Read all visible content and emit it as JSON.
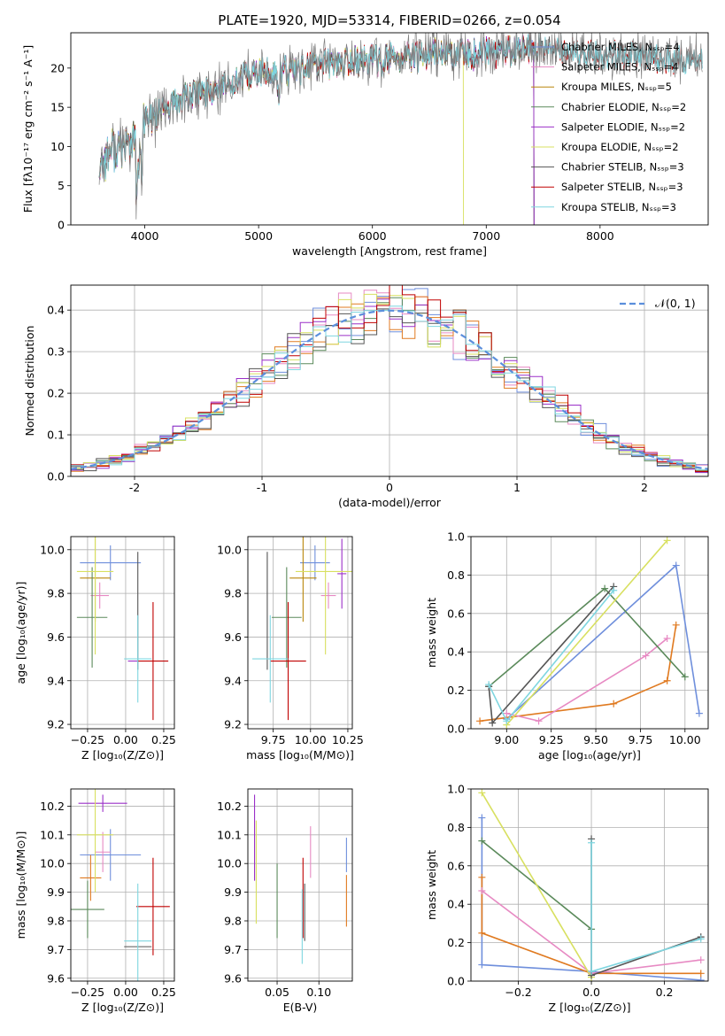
{
  "palette": {
    "chabrier_miles": "#6f8fdc",
    "salpeter_miles": "#e78ac3",
    "kroupa_miles": "#b8860b",
    "chabrier_elodie": "#5b8a5b",
    "salpeter_elodie": "#9b30c8",
    "kroupa_elodie": "#d8e060",
    "chabrier_stelib": "#555555",
    "salpeter_stelib": "#c00000",
    "kroupa_stelib": "#7fd6e0",
    "gauss": "#5b8fdc",
    "orange": "#e07a20",
    "grid": "#b0b0b0"
  },
  "chart_data": [
    {
      "id": "spectrum",
      "type": "line",
      "title": "PLATE=1920, MJD=53314, FIBERID=0266, z=0.054",
      "xlabel": "wavelength [Angstrom, rest frame]",
      "ylabel": "Flux [fλ10⁻¹⁷ erg cm⁻² s⁻¹ A⁻¹]",
      "xlim": [
        3350,
        8950
      ],
      "ylim": [
        0,
        24.5
      ],
      "xticks": [
        4000,
        5000,
        6000,
        7000,
        8000
      ],
      "yticks": [
        0,
        5,
        10,
        15,
        20
      ],
      "grid": false,
      "legend_position": "upper-right",
      "legend": [
        "Chabrier MILES, Nₛₛₚ=4",
        "Salpeter MILES, Nₛₛₚ=4",
        "Kroupa MILES, Nₛₛₚ=5",
        "Chabrier ELODIE, Nₛₛₚ=2",
        "Salpeter ELODIE, Nₛₛₚ=2",
        "Kroupa ELODIE, Nₛₛₚ=2",
        "Chabrier STELIB, Nₛₛₚ=3",
        "Salpeter STELIB, Nₛₛₚ=3",
        "Kroupa STELIB, Nₛₛₚ=3"
      ],
      "continuum": {
        "x": [
          3600,
          3700,
          3900,
          4000,
          4200,
          4400,
          4600,
          4800,
          5000,
          5200,
          5400,
          5600,
          5800,
          6000,
          6200,
          6400,
          6600,
          6800,
          7000,
          7200,
          7400,
          7600,
          7800,
          8000,
          8200,
          8400,
          8600,
          8800
        ],
        "y": [
          7.5,
          9.5,
          10.5,
          13.0,
          15.0,
          16.5,
          17.2,
          18.3,
          19.4,
          19.5,
          20.0,
          20.5,
          20.8,
          21.0,
          21.2,
          21.5,
          21.8,
          21.6,
          21.9,
          22.2,
          22.4,
          22.3,
          22.1,
          21.8,
          21.5,
          21.3,
          21.0,
          21.0
        ]
      },
      "data_range": [
        3600,
        8900
      ],
      "model_ends": {
        "kroupa_elodie": 6800,
        "miles_models": 7420,
        "stelib_models": 8900
      }
    },
    {
      "id": "residuals",
      "type": "histogram",
      "xlabel": "(data-model)/error",
      "ylabel": "Normed distribution",
      "xlim": [
        -2.5,
        2.5
      ],
      "ylim": [
        0,
        0.46
      ],
      "xticks": [
        -2,
        -1,
        0,
        1,
        2
      ],
      "yticks": [
        0.0,
        0.1,
        0.2,
        0.3,
        0.4
      ],
      "grid": true,
      "legend_position": "upper-right",
      "legend": [
        "𝒩(0, 1)"
      ],
      "bin_width": 0.1,
      "gaussian": {
        "mean": 0,
        "sigma": 1
      }
    },
    {
      "id": "age_vs_Z",
      "type": "errorbar",
      "xlabel": "Z [log₁₀(Z/Z⊙)]",
      "ylabel": "age  [log₁₀(age/yr)]",
      "xlim": [
        -0.36,
        0.32
      ],
      "ylim": [
        9.18,
        10.06
      ],
      "xticks": [
        -0.25,
        0.0,
        0.25
      ],
      "xtick_labels": [
        "−0.25",
        "0.00",
        "0.25"
      ],
      "yticks": [
        9.2,
        9.4,
        9.6,
        9.8,
        10.0
      ],
      "grid": true,
      "points": [
        {
          "model": "chabrier_miles",
          "x": -0.1,
          "xerr": 0.2,
          "y": 9.94,
          "yerr": 0.08
        },
        {
          "model": "salpeter_miles",
          "x": -0.17,
          "xerr": 0.06,
          "y": 9.79,
          "yerr": 0.06
        },
        {
          "model": "kroupa_miles",
          "x": -0.2,
          "xerr": 0.1,
          "y": 9.87,
          "yerr": 0.2
        },
        {
          "model": "chabrier_elodie",
          "x": -0.22,
          "xerr": 0.1,
          "y": 9.69,
          "yerr": 0.23
        },
        {
          "model": "salpeter_elodie",
          "x": 0.05,
          "xerr": 0.0,
          "y": 9.49,
          "yerr": 0.0
        },
        {
          "model": "kroupa_elodie",
          "x": -0.2,
          "xerr": 0.12,
          "y": 9.9,
          "yerr": 0.38
        },
        {
          "model": "chabrier_stelib",
          "x": 0.08,
          "xerr": 0.0,
          "y": 9.72,
          "yerr": 0.27
        },
        {
          "model": "salpeter_stelib",
          "x": 0.18,
          "xerr": 0.1,
          "y": 9.49,
          "yerr": 0.27
        },
        {
          "model": "kroupa_stelib",
          "x": 0.08,
          "xerr": 0.09,
          "y": 9.5,
          "yerr": 0.2
        }
      ]
    },
    {
      "id": "age_vs_mass",
      "type": "errorbar",
      "xlabel": "mass [log₁₀(M/M⊙)]",
      "ylabel": "",
      "xlim": [
        9.58,
        10.28
      ],
      "ylim": [
        9.18,
        10.06
      ],
      "xticks": [
        9.75,
        10.0,
        10.25
      ],
      "xtick_labels": [
        "9.75",
        "10.00",
        "10.25"
      ],
      "yticks": [
        9.2,
        9.4,
        9.6,
        9.8,
        10.0
      ],
      "grid": true,
      "points": [
        {
          "model": "chabrier_miles",
          "x": 10.03,
          "xerr": 0.1,
          "y": 9.94,
          "yerr": 0.08
        },
        {
          "model": "salpeter_miles",
          "x": 10.12,
          "xerr": 0.05,
          "y": 9.79,
          "yerr": 0.06
        },
        {
          "model": "kroupa_miles",
          "x": 9.95,
          "xerr": 0.09,
          "y": 9.87,
          "yerr": 0.2
        },
        {
          "model": "chabrier_elodie",
          "x": 9.84,
          "xerr": 0.1,
          "y": 9.69,
          "yerr": 0.23
        },
        {
          "model": "salpeter_elodie",
          "x": 10.21,
          "xerr": 0.03,
          "y": 9.89,
          "yerr": 0.16
        },
        {
          "model": "kroupa_elodie",
          "x": 10.1,
          "xerr": 0.2,
          "y": 9.9,
          "yerr": 0.38
        },
        {
          "model": "chabrier_stelib",
          "x": 9.71,
          "xerr": 0.0,
          "y": 9.72,
          "yerr": 0.27
        },
        {
          "model": "salpeter_stelib",
          "x": 9.85,
          "xerr": 0.12,
          "y": 9.49,
          "yerr": 0.27
        },
        {
          "model": "kroupa_stelib",
          "x": 9.73,
          "xerr": 0.12,
          "y": 9.5,
          "yerr": 0.2
        }
      ]
    },
    {
      "id": "mw_vs_age",
      "type": "line",
      "xlabel": "age  [log₁₀(age/yr)]",
      "ylabel": "mass weight",
      "xlim": [
        8.8,
        10.13
      ],
      "ylim": [
        0,
        1
      ],
      "xticks": [
        9.0,
        9.25,
        9.5,
        9.75,
        10.0
      ],
      "xtick_labels": [
        "9.00",
        "9.25",
        "9.50",
        "9.75",
        "10.00"
      ],
      "yticks": [
        0.0,
        0.2,
        0.4,
        0.6,
        0.8,
        1.0
      ],
      "grid": true,
      "series": [
        {
          "model": "chabrier_miles",
          "x": [
            9.0,
            9.95,
            10.08
          ],
          "y": [
            0.05,
            0.85,
            0.08
          ]
        },
        {
          "model": "orange",
          "x": [
            8.85,
            9.6,
            9.9,
            9.95
          ],
          "y": [
            0.04,
            0.13,
            0.25,
            0.54
          ]
        },
        {
          "model": "salpeter_miles",
          "x": [
            9.0,
            9.18,
            9.78,
            9.9
          ],
          "y": [
            0.08,
            0.04,
            0.38,
            0.47
          ]
        },
        {
          "model": "chabrier_elodie",
          "x": [
            8.9,
            9.55,
            10.0
          ],
          "y": [
            0.22,
            0.73,
            0.27
          ]
        },
        {
          "model": "kroupa_elodie",
          "x": [
            9.0,
            9.9
          ],
          "y": [
            0.02,
            0.98
          ]
        },
        {
          "model": "chabrier_stelib",
          "x": [
            8.9,
            8.92,
            9.6
          ],
          "y": [
            0.22,
            0.03,
            0.74
          ]
        },
        {
          "model": "kroupa_stelib",
          "x": [
            8.9,
            9.0,
            9.6
          ],
          "y": [
            0.23,
            0.04,
            0.72
          ]
        }
      ]
    },
    {
      "id": "mass_vs_Z",
      "type": "errorbar",
      "xlabel": "Z [log₁₀(Z/Z⊙)]",
      "ylabel": "mass [log₁₀(M/M⊙)]",
      "xlim": [
        -0.36,
        0.32
      ],
      "ylim": [
        9.59,
        10.26
      ],
      "xticks": [
        -0.25,
        0.0,
        0.25
      ],
      "xtick_labels": [
        "−0.25",
        "0.00",
        "0.25"
      ],
      "yticks": [
        9.6,
        9.7,
        9.8,
        9.9,
        10.0,
        10.1,
        10.2
      ],
      "grid": true,
      "points": [
        {
          "model": "chabrier_miles",
          "x": -0.1,
          "xerr": 0.2,
          "y": 10.03,
          "yerr": 0.09
        },
        {
          "model": "salpeter_miles",
          "x": -0.15,
          "xerr": 0.05,
          "y": 10.04,
          "yerr": 0.07
        },
        {
          "model": "orange",
          "x": -0.23,
          "xerr": 0.07,
          "y": 9.95,
          "yerr": 0.08
        },
        {
          "model": "chabrier_elodie",
          "x": -0.25,
          "xerr": 0.11,
          "y": 9.84,
          "yerr": 0.1
        },
        {
          "model": "salpeter_elodie",
          "x": -0.15,
          "xerr": 0.16,
          "y": 10.21,
          "yerr": 0.03
        },
        {
          "model": "kroupa_elodie",
          "x": -0.2,
          "xerr": 0.12,
          "y": 10.1,
          "yerr": 0.2
        },
        {
          "model": "chabrier_stelib",
          "x": 0.08,
          "xerr": 0.09,
          "y": 9.71,
          "yerr": 0.0
        },
        {
          "model": "salpeter_stelib",
          "x": 0.18,
          "xerr": 0.11,
          "y": 9.85,
          "yerr": 0.17
        },
        {
          "model": "kroupa_stelib",
          "x": 0.08,
          "xerr": 0.09,
          "y": 9.73,
          "yerr": 0.2
        }
      ]
    },
    {
      "id": "mass_vs_ebv",
      "type": "errorbar",
      "xlabel": "E(B-V)",
      "ylabel": "",
      "xlim": [
        0.015,
        0.14
      ],
      "ylim": [
        9.59,
        10.26
      ],
      "xticks": [
        0.05,
        0.1
      ],
      "xtick_labels": [
        "0.05",
        "0.10"
      ],
      "yticks": [
        9.6,
        9.7,
        9.8,
        9.9,
        10.0,
        10.1,
        10.2
      ],
      "grid": true,
      "points": [
        {
          "model": "chabrier_miles",
          "x": 0.133,
          "xerr": 0.0,
          "y": 10.03,
          "yerr": 0.06
        },
        {
          "model": "salpeter_miles",
          "x": 0.09,
          "xerr": 0.0,
          "y": 10.04,
          "yerr": 0.09
        },
        {
          "model": "orange",
          "x": 0.133,
          "xerr": 0.0,
          "y": 9.87,
          "yerr": 0.09
        },
        {
          "model": "chabrier_elodie",
          "x": 0.05,
          "xerr": 0.0,
          "y": 9.87,
          "yerr": 0.13
        },
        {
          "model": "salpeter_elodie",
          "x": 0.023,
          "xerr": 0.0,
          "y": 10.09,
          "yerr": 0.15
        },
        {
          "model": "kroupa_elodie",
          "x": 0.025,
          "xerr": 0.0,
          "y": 9.97,
          "yerr": 0.18
        },
        {
          "model": "chabrier_stelib",
          "x": 0.083,
          "xerr": 0.0,
          "y": 9.83,
          "yerr": 0.1
        },
        {
          "model": "salpeter_stelib",
          "x": 0.081,
          "xerr": 0.0,
          "y": 9.88,
          "yerr": 0.14
        },
        {
          "model": "kroupa_stelib",
          "x": 0.08,
          "xerr": 0.0,
          "y": 9.78,
          "yerr": 0.13
        }
      ]
    },
    {
      "id": "mw_vs_Z",
      "type": "line",
      "xlabel": "Z [log₁₀(Z/Z⊙)]",
      "ylabel": "mass weight",
      "xlim": [
        -0.33,
        0.32
      ],
      "ylim": [
        0,
        1
      ],
      "xticks": [
        -0.2,
        0.0,
        0.2
      ],
      "xtick_labels": [
        "−0.2",
        "0.0",
        "0.2"
      ],
      "yticks": [
        0.0,
        0.2,
        0.4,
        0.6,
        0.8,
        1.0
      ],
      "grid": true,
      "series": [
        {
          "model": "chabrier_miles",
          "x": [
            -0.3,
            -0.3,
            0.0,
            0.3
          ],
          "y": [
            0.85,
            0.085,
            0.05,
            0.005
          ]
        },
        {
          "model": "orange",
          "x": [
            -0.3,
            -0.3,
            0.0,
            0.3
          ],
          "y": [
            0.54,
            0.25,
            0.04,
            0.04
          ]
        },
        {
          "model": "salpeter_miles",
          "x": [
            -0.3,
            0.0,
            0.3
          ],
          "y": [
            0.47,
            0.04,
            0.11
          ]
        },
        {
          "model": "chabrier_elodie",
          "x": [
            -0.3,
            0.0
          ],
          "y": [
            0.73,
            0.27
          ]
        },
        {
          "model": "kroupa_elodie",
          "x": [
            -0.3,
            0.0
          ],
          "y": [
            0.98,
            0.02
          ]
        },
        {
          "model": "chabrier_stelib",
          "x": [
            0.0,
            0.0,
            0.3
          ],
          "y": [
            0.74,
            0.03,
            0.23
          ]
        },
        {
          "model": "kroupa_stelib",
          "x": [
            0.0,
            0.0,
            0.3
          ],
          "y": [
            0.72,
            0.05,
            0.22
          ]
        }
      ]
    }
  ]
}
